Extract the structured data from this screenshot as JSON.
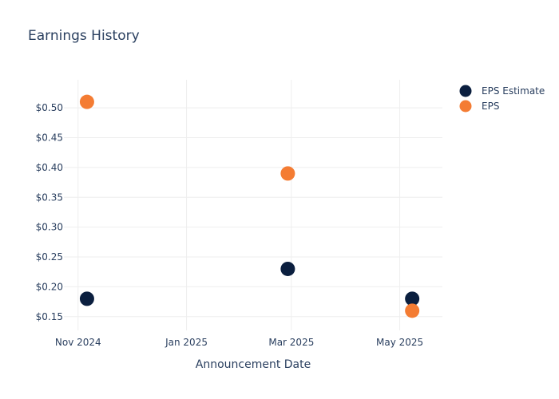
{
  "chart_data": {
    "type": "scatter",
    "title": "Earnings History",
    "xlabel": "Announcement Date",
    "ylabel": "",
    "x_ticks": [
      {
        "date": "2024-11-01",
        "label": "Nov 2024"
      },
      {
        "date": "2025-01-01",
        "label": "Jan 2025"
      },
      {
        "date": "2025-03-01",
        "label": "Mar 2025"
      },
      {
        "date": "2025-05-01",
        "label": "May 2025"
      }
    ],
    "y_ticks": [
      {
        "value": 0.15,
        "label": "$0.15"
      },
      {
        "value": 0.2,
        "label": "$0.20"
      },
      {
        "value": 0.25,
        "label": "$0.25"
      },
      {
        "value": 0.3,
        "label": "$0.30"
      },
      {
        "value": 0.35,
        "label": "$0.35"
      },
      {
        "value": 0.4,
        "label": "$0.40"
      },
      {
        "value": 0.45,
        "label": "$0.45"
      },
      {
        "value": 0.5,
        "label": "$0.50"
      }
    ],
    "xlim": [
      "2024-10-24",
      "2025-05-25"
    ],
    "ylim": [
      0.127,
      0.547
    ],
    "grid": true,
    "legend_position": "top-right",
    "series": [
      {
        "name": "EPS Estimate",
        "color": "#0b1f3f",
        "points": [
          {
            "x": "2024-11-06",
            "y": 0.18
          },
          {
            "x": "2025-02-27",
            "y": 0.23
          },
          {
            "x": "2025-05-08",
            "y": 0.18
          }
        ]
      },
      {
        "name": "EPS",
        "color": "#f47c33",
        "points": [
          {
            "x": "2024-11-06",
            "y": 0.51
          },
          {
            "x": "2025-02-27",
            "y": 0.39
          },
          {
            "x": "2025-05-08",
            "y": 0.16
          }
        ]
      }
    ]
  }
}
